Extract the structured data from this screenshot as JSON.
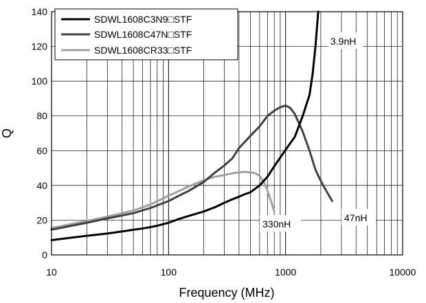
{
  "chart_data": {
    "type": "line",
    "xlabel": "Frequency (MHz)",
    "ylabel": "Q",
    "xscale": "log",
    "xlim": [
      10,
      10000
    ],
    "ylim": [
      0,
      140
    ],
    "x_ticks": [
      10,
      100,
      1000,
      10000
    ],
    "x_tick_labels": [
      "10",
      "100",
      "1000",
      "10000"
    ],
    "y_ticks": [
      0,
      20,
      40,
      60,
      80,
      100,
      120,
      140
    ],
    "y_tick_labels": [
      "0",
      "20",
      "40",
      "60",
      "80",
      "100",
      "120",
      "140"
    ],
    "grid": true,
    "legend_position": "top-left",
    "series": [
      {
        "name": "SDWL1608C3N9□STF",
        "color": "#000000",
        "x": [
          10,
          15,
          20,
          30,
          40,
          50,
          60,
          70,
          80,
          100,
          120,
          150,
          200,
          250,
          300,
          350,
          400,
          450,
          500,
          600,
          700,
          800,
          900,
          1000,
          1200,
          1400,
          1600,
          1700,
          1800,
          1850,
          1900
        ],
        "y": [
          8.5,
          10.0,
          11.0,
          12.3,
          13.5,
          14.5,
          15.2,
          16.0,
          16.8,
          18.5,
          20.5,
          22.5,
          25.0,
          27.5,
          30.0,
          32.0,
          33.5,
          35.0,
          36.0,
          40.0,
          45.0,
          51.0,
          56.0,
          60.5,
          68.0,
          80.0,
          92.0,
          104.0,
          120.0,
          130.0,
          140.0
        ]
      },
      {
        "name": "SDWL1608C47N□STF",
        "color": "#404040",
        "x": [
          10,
          20,
          30,
          50,
          70,
          100,
          150,
          200,
          250,
          300,
          350,
          400,
          500,
          600,
          700,
          800,
          900,
          1000,
          1100,
          1200,
          1400,
          1600,
          1800,
          2000,
          2200,
          2500
        ],
        "y": [
          14.5,
          18.5,
          21.0,
          24.0,
          27.0,
          31.0,
          37.0,
          42.0,
          47.5,
          51.5,
          55.5,
          61.5,
          68.5,
          74.0,
          80.0,
          83.0,
          85.0,
          86.0,
          84.5,
          81.0,
          71.0,
          60.0,
          49.0,
          42.5,
          37.5,
          31.0
        ]
      },
      {
        "name": "SDWL1608CR33□STF",
        "color": "#a0a0a0",
        "x": [
          10,
          20,
          30,
          50,
          70,
          100,
          150,
          200,
          250,
          300,
          350,
          400,
          450,
          500,
          550,
          600,
          650,
          700,
          750,
          800
        ],
        "y": [
          15.5,
          19.5,
          22.0,
          25.5,
          29.0,
          34.0,
          39.5,
          43.0,
          45.0,
          46.0,
          47.0,
          47.5,
          47.8,
          47.5,
          47.0,
          45.5,
          42.0,
          37.0,
          31.0,
          25.0
        ]
      }
    ],
    "annotations": [
      "3.9nH",
      "47nH",
      "330nH"
    ]
  }
}
